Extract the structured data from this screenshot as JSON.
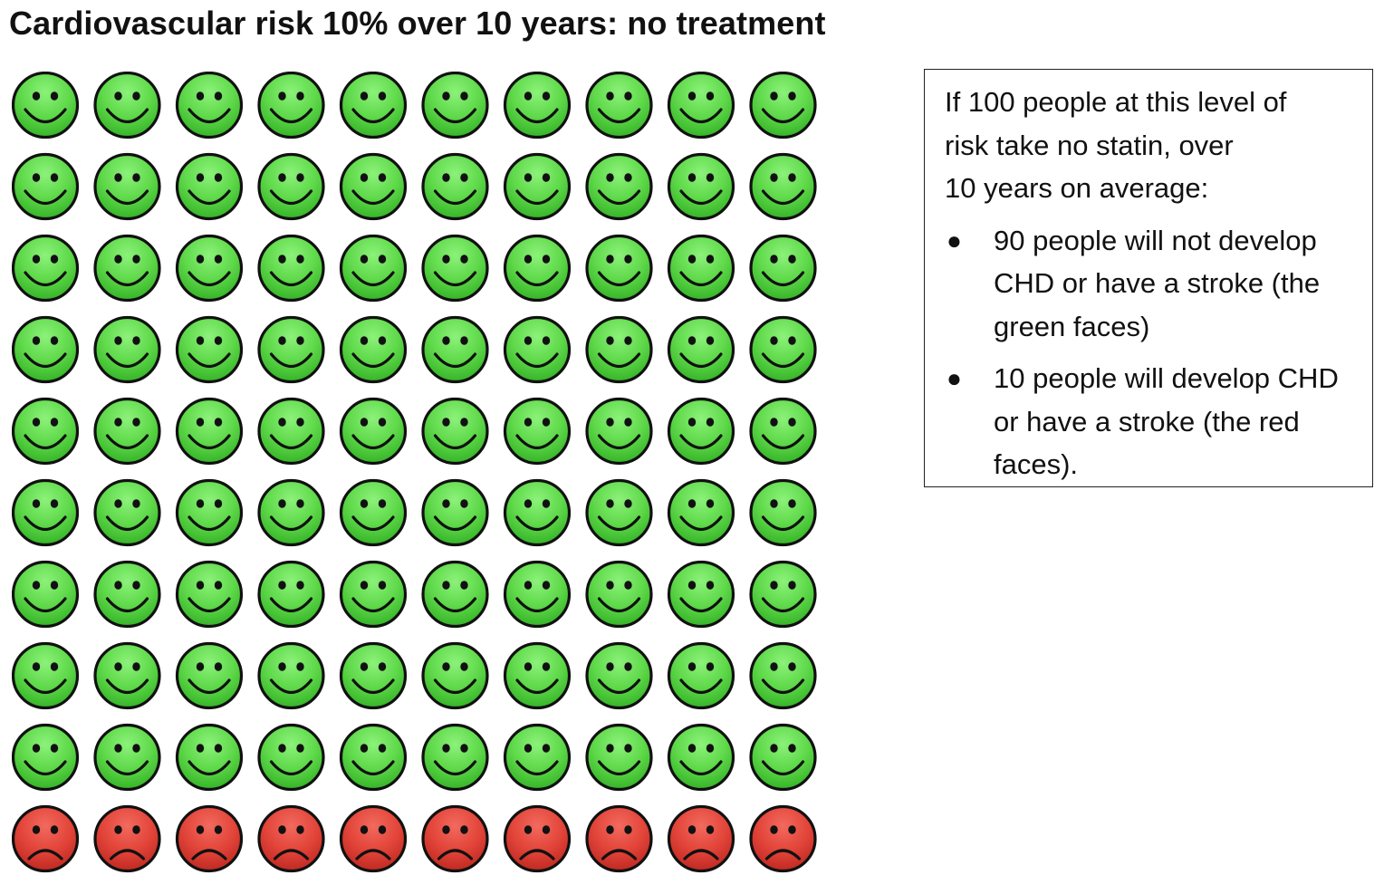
{
  "title": {
    "main": "Cardiovascular risk 10% over 10 years",
    "suffix": ": no treatment"
  },
  "info_box": {
    "intro_lines": [
      "If 100 people at this level of",
      "risk take no statin, over",
      "10 years on average:"
    ],
    "bullets": [
      "90 people will not develop CHD or have a stroke (the green faces)",
      "10 people will develop CHD or have a stroke (the red faces)."
    ]
  },
  "chart_data": {
    "type": "icon-array",
    "rows": 10,
    "columns": 10,
    "total": 100,
    "groups": [
      {
        "icon": "smiling-face-icon",
        "count": 90,
        "color": "#4ccf3a"
      },
      {
        "icon": "frowning-face-icon",
        "count": 10,
        "color": "#e0362f"
      }
    ]
  }
}
